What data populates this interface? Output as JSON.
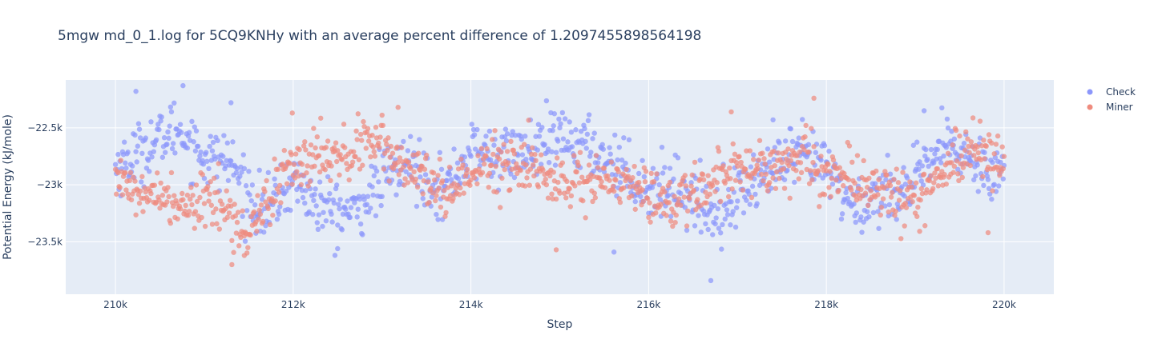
{
  "chart_data": {
    "type": "scatter",
    "title": "5mgw md_0_1.log for 5CQ9KNHy with an average percent difference of 1.2097455898564198",
    "xlabel": "Step",
    "ylabel": "Potential Energy (kJ/mole)",
    "xlim": [
      209440,
      220560
    ],
    "ylim": [
      -23960,
      -22080
    ],
    "x_ticks": [
      {
        "value": 210000,
        "label": "210k"
      },
      {
        "value": 212000,
        "label": "212k"
      },
      {
        "value": 214000,
        "label": "214k"
      },
      {
        "value": 216000,
        "label": "216k"
      },
      {
        "value": 218000,
        "label": "218k"
      },
      {
        "value": 220000,
        "label": "220k"
      }
    ],
    "y_ticks": [
      {
        "value": -22500,
        "label": "−22.5k"
      },
      {
        "value": -23000,
        "label": "−23k"
      },
      {
        "value": -23500,
        "label": "−23.5k"
      }
    ],
    "grid": true,
    "legend_position": "top-right",
    "point_count": 1001,
    "x_start": 210000,
    "x_end": 220000,
    "series": [
      {
        "name": "Check",
        "color": "#8c97fb",
        "anchors_x": [
          210000,
          210300,
          210700,
          211000,
          211300,
          211500,
          211700,
          212000,
          212300,
          212700,
          213000,
          213300,
          213700,
          214000,
          214300,
          214700,
          215000,
          215300,
          215700,
          216000,
          216300,
          216700,
          217000,
          217300,
          217700,
          218000,
          218300,
          218700,
          219000,
          219300,
          219700,
          220000
        ],
        "anchors_y": [
          -22850,
          -22700,
          -22500,
          -22750,
          -22800,
          -23100,
          -23250,
          -22950,
          -23200,
          -23250,
          -22950,
          -22800,
          -23050,
          -22700,
          -22750,
          -22700,
          -22600,
          -22650,
          -22850,
          -23050,
          -23000,
          -23250,
          -23100,
          -22900,
          -22750,
          -22850,
          -23200,
          -23050,
          -23000,
          -22650,
          -22800,
          -22900
        ],
        "spread": 130,
        "outliers": [
          {
            "x": 210760,
            "y": -22130
          },
          {
            "x": 210230,
            "y": -22180
          },
          {
            "x": 211300,
            "y": -22280
          },
          {
            "x": 215610,
            "y": -23590
          },
          {
            "x": 216700,
            "y": -23840
          },
          {
            "x": 219100,
            "y": -22350
          },
          {
            "x": 217400,
            "y": -22430
          },
          {
            "x": 212500,
            "y": -23560
          }
        ]
      },
      {
        "name": "Miner",
        "color": "#ef8b7e",
        "anchors_x": [
          210000,
          210300,
          210700,
          211000,
          211300,
          211500,
          211700,
          212000,
          212300,
          212700,
          213000,
          213300,
          213700,
          214000,
          214300,
          214700,
          215000,
          215300,
          215700,
          216000,
          216300,
          216700,
          217000,
          217300,
          217700,
          218000,
          218300,
          218700,
          219000,
          219300,
          219700,
          220000
        ],
        "anchors_y": [
          -22900,
          -23100,
          -23150,
          -23100,
          -23250,
          -23450,
          -23100,
          -22850,
          -22750,
          -22700,
          -22650,
          -22900,
          -23050,
          -22900,
          -22800,
          -22850,
          -23000,
          -22950,
          -23000,
          -23100,
          -23150,
          -22950,
          -22850,
          -22850,
          -22750,
          -22900,
          -22950,
          -23100,
          -23100,
          -22850,
          -22700,
          -22750
        ],
        "spread": 120,
        "outliers": [
          {
            "x": 211310,
            "y": -23700
          },
          {
            "x": 211450,
            "y": -23620
          },
          {
            "x": 211990,
            "y": -22370
          },
          {
            "x": 213180,
            "y": -22320
          },
          {
            "x": 214960,
            "y": -23570
          },
          {
            "x": 217860,
            "y": -22240
          },
          {
            "x": 219820,
            "y": -23420
          },
          {
            "x": 216930,
            "y": -22360
          }
        ]
      }
    ]
  }
}
